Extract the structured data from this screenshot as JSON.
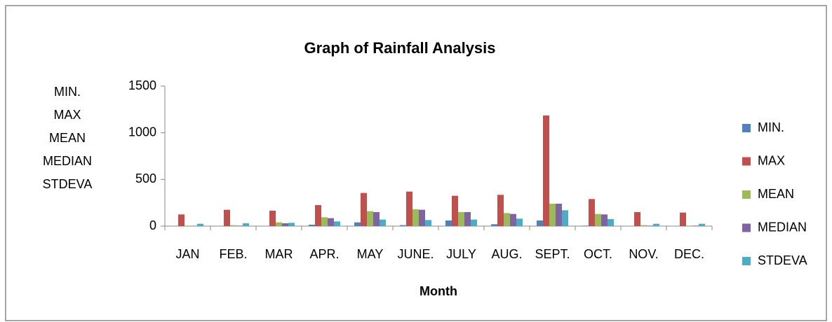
{
  "chart_data": {
    "type": "bar",
    "title": "Graph of Rainfall Analysis",
    "xlabel": "Month",
    "ylabel": [
      "MIN.",
      "MAX",
      "MEAN",
      "MEDIAN",
      "STDEVA"
    ],
    "categories": [
      "JAN",
      "FEB.",
      "MAR",
      "APR.",
      "MAY",
      "JUNE.",
      "JULY",
      "AUG.",
      "SEPT.",
      "OCT.",
      "NOV.",
      "DEC."
    ],
    "series": [
      {
        "name": "MIN.",
        "color": "#4f81bd",
        "values": [
          0,
          0,
          0,
          15,
          40,
          10,
          60,
          20,
          60,
          5,
          0,
          0
        ]
      },
      {
        "name": "MAX",
        "color": "#c0504d",
        "values": [
          125,
          175,
          165,
          225,
          355,
          370,
          325,
          335,
          1185,
          290,
          150,
          145
        ]
      },
      {
        "name": "MEAN",
        "color": "#9bbb59",
        "values": [
          5,
          10,
          40,
          95,
          160,
          180,
          150,
          140,
          240,
          130,
          10,
          5
        ]
      },
      {
        "name": "MEDIAN",
        "color": "#8064a2",
        "values": [
          3,
          5,
          30,
          85,
          150,
          175,
          150,
          130,
          240,
          125,
          5,
          5
        ]
      },
      {
        "name": "STDEVA",
        "color": "#4bacc6",
        "values": [
          25,
          30,
          35,
          50,
          70,
          65,
          70,
          80,
          170,
          75,
          25,
          25
        ]
      }
    ],
    "ylim": [
      0,
      1500
    ],
    "yticks": [
      0,
      500,
      1000,
      1500
    ],
    "legend": "right"
  }
}
